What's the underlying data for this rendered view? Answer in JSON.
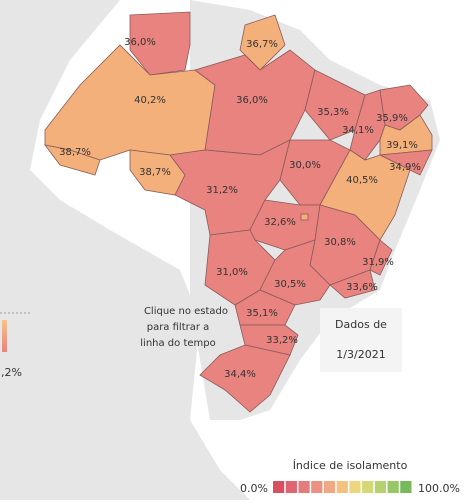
{
  "map": {
    "states": [
      {
        "label": "36,0%",
        "color": "#e8837f"
      },
      {
        "label": "36,7%",
        "color": "#f3b07a"
      },
      {
        "label": "40,2%",
        "color": "#f3b07a"
      },
      {
        "label": "38,7%",
        "color": "#f3b07a"
      },
      {
        "label": "38,7%",
        "color": "#f3b07a"
      },
      {
        "label": "36,0%",
        "color": "#e8837f"
      },
      {
        "label": "31,2%",
        "color": "#e8837f"
      },
      {
        "label": "35,3%",
        "color": "#e8837f"
      },
      {
        "label": "34,1%",
        "color": "#e8837f"
      },
      {
        "label": "35,9%",
        "color": "#e8837f"
      },
      {
        "label": "39,1%",
        "color": "#f3b07a"
      },
      {
        "label": "34,9%",
        "color": "#e8837f"
      },
      {
        "label": "30,0%",
        "color": "#e8837f"
      },
      {
        "label": "40,5%",
        "color": "#f3b07a"
      },
      {
        "label": "32,6%",
        "color": "#e8837f"
      },
      {
        "label": "30,8%",
        "color": "#e8837f"
      },
      {
        "label": "31,9%",
        "color": "#e8837f"
      },
      {
        "label": "31,0%",
        "color": "#e8837f"
      },
      {
        "label": "30,5%",
        "color": "#e8837f"
      },
      {
        "label": "33,6%",
        "color": "#e8837f"
      },
      {
        "label": "35,1%",
        "color": "#e8837f"
      },
      {
        "label": "33,2%",
        "color": "#e8837f"
      },
      {
        "label": "34,4%",
        "color": "#e8837f"
      }
    ],
    "hint": [
      "Clique no estado",
      "para filtrar a",
      "linha do tempo"
    ],
    "date_box": [
      "Dados de",
      "1/3/2021"
    ],
    "side_label": ",2%",
    "legend": {
      "title": "Índice de isolamento",
      "min_label": "0.0%",
      "max_label": "100.0%",
      "colors": [
        "#d6505f",
        "#df6570",
        "#e67b7c",
        "#ec9182",
        "#f1a884",
        "#f5c17f",
        "#efd67e",
        "#d4d878",
        "#b6d170",
        "#97c766",
        "#78b95c"
      ]
    }
  }
}
